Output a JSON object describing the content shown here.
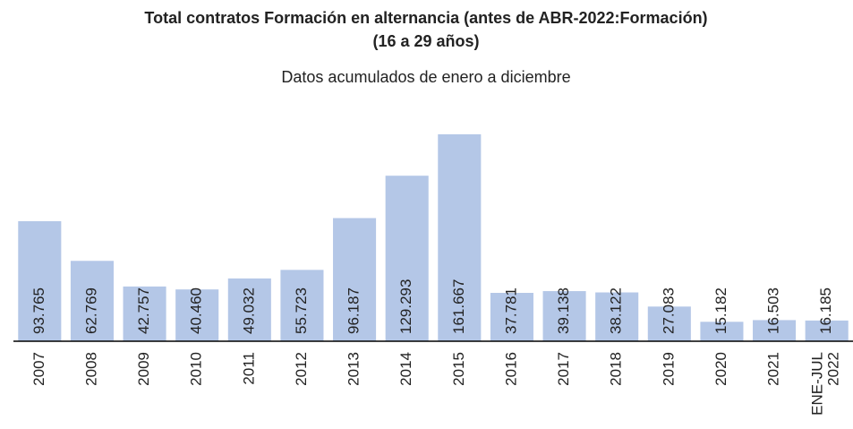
{
  "chart_data": {
    "type": "bar",
    "title": [
      "Total contratos Formación en alternancia (antes de ABR-2022:Formación)",
      "(16 a 29 años)"
    ],
    "subtitle": "Datos acumulados de enero a diciembre",
    "categories": [
      "2007",
      "2008",
      "2009",
      "2010",
      "2011",
      "2012",
      "2013",
      "2014",
      "2015",
      "2016",
      "2017",
      "2018",
      "2019",
      "2020",
      "2021",
      "ENE-JUL 2022"
    ],
    "values": [
      93765,
      62769,
      42757,
      40460,
      49032,
      55723,
      96187,
      129293,
      161667,
      37781,
      39138,
      38122,
      27083,
      15182,
      16503,
      16185
    ],
    "value_labels": [
      "93.765",
      "62.769",
      "42.757",
      "40.460",
      "49.032",
      "55.723",
      "96.187",
      "129.293",
      "161.667",
      "37.781",
      "39.138",
      "38.122",
      "27.083",
      "15.182",
      "16.503",
      "16.185"
    ],
    "color": "#b4c7e7",
    "ylim": [
      0,
      170000
    ]
  }
}
